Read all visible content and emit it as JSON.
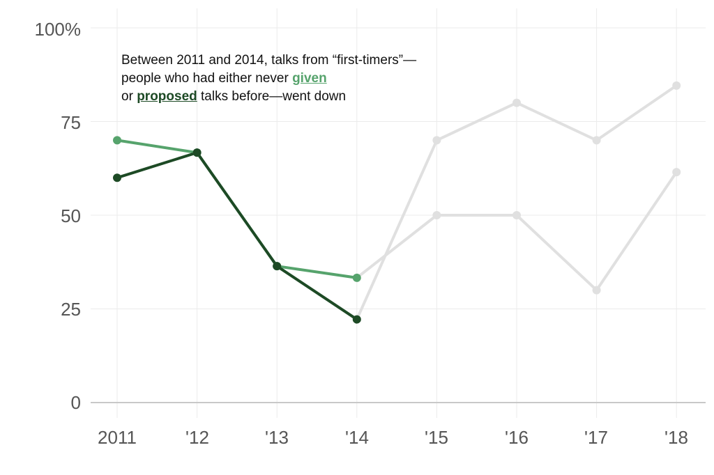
{
  "chart_data": {
    "type": "line",
    "x": [
      "2011",
      "'12",
      "'13",
      "'14",
      "'15",
      "'16",
      "'17",
      "'18"
    ],
    "ylim": [
      0,
      100
    ],
    "y_ticks": [
      "0",
      "25",
      "50",
      "75",
      "100%"
    ],
    "y_tick_values": [
      0,
      25,
      50,
      75,
      100
    ],
    "grid": true,
    "series": [
      {
        "name": "given",
        "values": [
          70,
          66.7,
          36.4,
          33.3,
          50,
          50,
          30,
          61.5
        ],
        "highlight_count": 4
      },
      {
        "name": "proposed",
        "values": [
          60,
          66.7,
          36.4,
          22.2,
          70,
          80,
          70,
          84.6
        ],
        "highlight_count": 4
      }
    ],
    "annotation": {
      "part1": "Between 2011 and 2014, talks from “first-timers”—people who had either never ",
      "given": "given",
      "part2": " or ",
      "proposed": "proposed",
      "part3": " talks before—went down"
    }
  },
  "colors": {
    "given": "#56a36c",
    "proposed": "#1d4a25",
    "muted": "#e0e0e0",
    "grid": "#ebebeb",
    "axis": "#c8c8c8",
    "tick": "#555555"
  }
}
